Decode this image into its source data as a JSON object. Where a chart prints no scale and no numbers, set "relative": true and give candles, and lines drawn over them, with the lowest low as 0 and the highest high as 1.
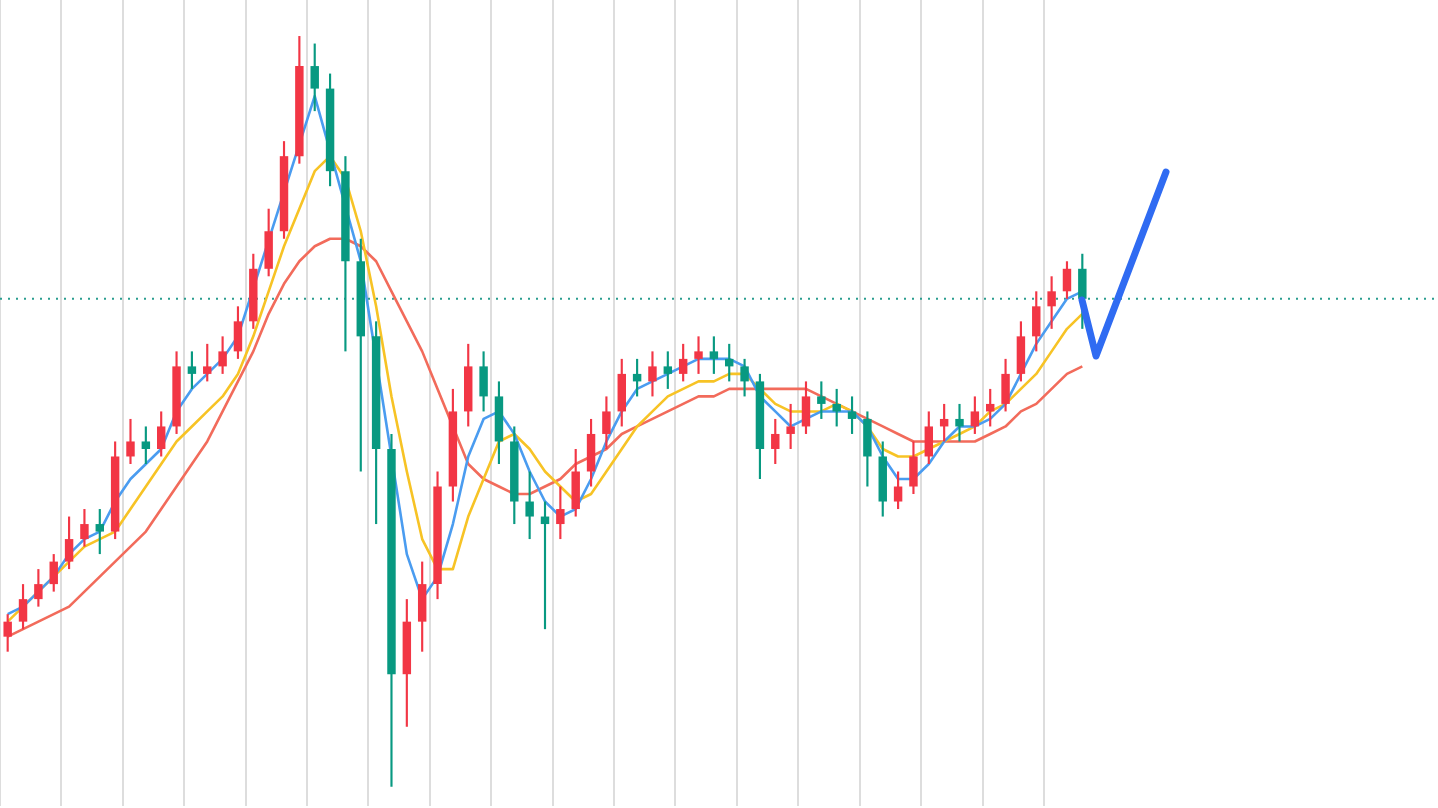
{
  "chart_data": {
    "type": "candlestick",
    "relative": true,
    "grid": "x",
    "categories": [
      null,
      null,
      null,
      null,
      null,
      null,
      null,
      null,
      null,
      null,
      null,
      null,
      null,
      null,
      null,
      null,
      null,
      null,
      null,
      null,
      null,
      null,
      null,
      null,
      null,
      null,
      null,
      null,
      null,
      null,
      null,
      null,
      null,
      null,
      null,
      null,
      null,
      null,
      null,
      null,
      null,
      null,
      null,
      null,
      null,
      null,
      null,
      null,
      null,
      null,
      null,
      null,
      null,
      null,
      null,
      null,
      null,
      null,
      null,
      null,
      null,
      null,
      null,
      null,
      null,
      null,
      null,
      null,
      null,
      null,
      null
    ],
    "ohlc": [
      [
        0.2,
        0.23,
        0.18,
        0.22
      ],
      [
        0.22,
        0.27,
        0.21,
        0.25
      ],
      [
        0.25,
        0.29,
        0.24,
        0.27
      ],
      [
        0.27,
        0.31,
        0.26,
        0.3
      ],
      [
        0.3,
        0.36,
        0.29,
        0.33
      ],
      [
        0.33,
        0.37,
        0.32,
        0.35
      ],
      [
        0.35,
        0.37,
        0.31,
        0.34
      ],
      [
        0.34,
        0.46,
        0.33,
        0.44
      ],
      [
        0.44,
        0.49,
        0.43,
        0.46
      ],
      [
        0.46,
        0.48,
        0.43,
        0.45
      ],
      [
        0.45,
        0.5,
        0.44,
        0.48
      ],
      [
        0.48,
        0.58,
        0.47,
        0.56
      ],
      [
        0.56,
        0.58,
        0.53,
        0.55
      ],
      [
        0.55,
        0.59,
        0.54,
        0.56
      ],
      [
        0.56,
        0.6,
        0.55,
        0.58
      ],
      [
        0.58,
        0.64,
        0.57,
        0.62
      ],
      [
        0.62,
        0.71,
        0.61,
        0.69
      ],
      [
        0.69,
        0.77,
        0.68,
        0.74
      ],
      [
        0.74,
        0.86,
        0.73,
        0.84
      ],
      [
        0.84,
        1.0,
        0.83,
        0.96
      ],
      [
        0.96,
        0.99,
        0.9,
        0.93
      ],
      [
        0.93,
        0.95,
        0.8,
        0.82
      ],
      [
        0.82,
        0.84,
        0.58,
        0.7
      ],
      [
        0.7,
        0.73,
        0.42,
        0.6
      ],
      [
        0.6,
        0.62,
        0.35,
        0.45
      ],
      [
        0.45,
        0.47,
        0.0,
        0.15
      ],
      [
        0.15,
        0.25,
        0.08,
        0.22
      ],
      [
        0.22,
        0.3,
        0.18,
        0.27
      ],
      [
        0.27,
        0.42,
        0.25,
        0.4
      ],
      [
        0.4,
        0.53,
        0.38,
        0.5
      ],
      [
        0.5,
        0.59,
        0.48,
        0.56
      ],
      [
        0.56,
        0.58,
        0.5,
        0.52
      ],
      [
        0.52,
        0.54,
        0.43,
        0.46
      ],
      [
        0.46,
        0.48,
        0.35,
        0.38
      ],
      [
        0.38,
        0.42,
        0.33,
        0.36
      ],
      [
        0.36,
        0.38,
        0.21,
        0.35
      ],
      [
        0.35,
        0.4,
        0.33,
        0.37
      ],
      [
        0.37,
        0.45,
        0.36,
        0.42
      ],
      [
        0.42,
        0.49,
        0.4,
        0.47
      ],
      [
        0.47,
        0.52,
        0.45,
        0.5
      ],
      [
        0.5,
        0.57,
        0.48,
        0.55
      ],
      [
        0.55,
        0.57,
        0.52,
        0.54
      ],
      [
        0.54,
        0.58,
        0.52,
        0.56
      ],
      [
        0.56,
        0.58,
        0.53,
        0.55
      ],
      [
        0.55,
        0.59,
        0.54,
        0.57
      ],
      [
        0.57,
        0.6,
        0.55,
        0.58
      ],
      [
        0.58,
        0.6,
        0.55,
        0.57
      ],
      [
        0.57,
        0.59,
        0.54,
        0.56
      ],
      [
        0.56,
        0.57,
        0.52,
        0.54
      ],
      [
        0.54,
        0.55,
        0.41,
        0.45
      ],
      [
        0.45,
        0.49,
        0.43,
        0.47
      ],
      [
        0.47,
        0.51,
        0.45,
        0.48
      ],
      [
        0.48,
        0.54,
        0.47,
        0.52
      ],
      [
        0.52,
        0.54,
        0.49,
        0.51
      ],
      [
        0.51,
        0.53,
        0.48,
        0.5
      ],
      [
        0.5,
        0.52,
        0.47,
        0.49
      ],
      [
        0.49,
        0.5,
        0.4,
        0.44
      ],
      [
        0.44,
        0.46,
        0.36,
        0.38
      ],
      [
        0.38,
        0.42,
        0.37,
        0.4
      ],
      [
        0.4,
        0.46,
        0.39,
        0.44
      ],
      [
        0.44,
        0.5,
        0.43,
        0.48
      ],
      [
        0.48,
        0.51,
        0.46,
        0.49
      ],
      [
        0.49,
        0.51,
        0.46,
        0.48
      ],
      [
        0.48,
        0.52,
        0.47,
        0.5
      ],
      [
        0.5,
        0.53,
        0.48,
        0.51
      ],
      [
        0.51,
        0.57,
        0.5,
        0.55
      ],
      [
        0.55,
        0.62,
        0.54,
        0.6
      ],
      [
        0.6,
        0.66,
        0.58,
        0.64
      ],
      [
        0.64,
        0.68,
        0.61,
        0.66
      ],
      [
        0.66,
        0.7,
        0.65,
        0.69
      ],
      [
        0.69,
        0.71,
        0.61,
        0.65
      ]
    ],
    "colors": [
      "#f23645",
      "#f23645",
      "#f23645",
      "#f23645",
      "#f23645",
      "#f23645",
      "#089981",
      "#f23645",
      "#f23645",
      "#089981",
      "#f23645",
      "#f23645",
      "#089981",
      "#f23645",
      "#f23645",
      "#f23645",
      "#f23645",
      "#f23645",
      "#f23645",
      "#f23645",
      "#089981",
      "#089981",
      "#089981",
      "#089981",
      "#089981",
      "#089981",
      "#f23645",
      "#f23645",
      "#f23645",
      "#f23645",
      "#f23645",
      "#089981",
      "#089981",
      "#089981",
      "#089981",
      "#089981",
      "#f23645",
      "#f23645",
      "#f23645",
      "#f23645",
      "#f23645",
      "#089981",
      "#f23645",
      "#089981",
      "#f23645",
      "#f23645",
      "#089981",
      "#089981",
      "#089981",
      "#089981",
      "#f23645",
      "#f23645",
      "#f23645",
      "#089981",
      "#089981",
      "#089981",
      "#089981",
      "#089981",
      "#f23645",
      "#f23645",
      "#f23645",
      "#f23645",
      "#089981",
      "#f23645",
      "#f23645",
      "#f23645",
      "#f23645",
      "#f23645",
      "#f23645",
      "#f23645",
      "#089981"
    ],
    "series": [
      {
        "type": "line",
        "color": "#4a9cf0",
        "values": [
          0.23,
          0.24,
          0.26,
          0.28,
          0.31,
          0.33,
          0.34,
          0.38,
          0.41,
          0.43,
          0.45,
          0.5,
          0.53,
          0.55,
          0.57,
          0.6,
          null,
          null,
          null,
          null,
          0.92,
          null,
          null,
          0.7,
          null,
          null,
          0.31,
          0.25,
          0.28,
          0.35,
          0.44,
          0.49,
          0.5,
          0.47,
          0.42,
          0.38,
          0.36,
          0.37,
          0.41,
          0.46,
          0.5,
          0.53,
          0.54,
          0.55,
          0.56,
          0.57,
          0.57,
          0.57,
          0.56,
          0.52,
          0.5,
          0.48,
          0.49,
          0.5,
          0.5,
          0.5,
          0.48,
          0.44,
          0.41,
          0.41,
          0.43,
          0.46,
          0.48,
          0.48,
          0.49,
          0.51,
          0.55,
          0.59,
          0.62,
          0.65,
          0.66
        ]
      },
      {
        "type": "line",
        "color": "#f7c325",
        "values": [
          0.22,
          0.24,
          0.26,
          0.28,
          0.3,
          0.32,
          0.33,
          0.34,
          0.37,
          0.4,
          0.43,
          0.46,
          0.48,
          0.5,
          0.52,
          0.55,
          0.6,
          0.66,
          0.72,
          0.77,
          0.82,
          0.84,
          0.81,
          0.74,
          0.64,
          0.52,
          0.42,
          0.33,
          0.29,
          0.29,
          0.36,
          0.41,
          0.46,
          0.47,
          0.45,
          0.42,
          0.4,
          0.38,
          0.39,
          0.42,
          0.45,
          0.48,
          0.5,
          0.52,
          0.53,
          0.54,
          0.54,
          0.55,
          0.55,
          0.53,
          0.51,
          0.5,
          0.5,
          0.5,
          0.51,
          0.5,
          0.48,
          0.45,
          0.44,
          0.44,
          0.45,
          0.46,
          0.47,
          0.48,
          0.5,
          0.51,
          0.53,
          0.55,
          0.58,
          0.61,
          0.63
        ]
      },
      {
        "type": "line",
        "color": "#f26b5b",
        "values": [
          0.2,
          0.21,
          0.22,
          0.23,
          0.24,
          0.26,
          0.28,
          0.3,
          0.32,
          0.34,
          0.37,
          0.4,
          0.43,
          0.46,
          0.5,
          0.54,
          0.58,
          0.63,
          0.67,
          0.7,
          0.72,
          0.73,
          0.73,
          0.72,
          0.7,
          0.66,
          0.62,
          0.58,
          0.53,
          0.48,
          0.43,
          0.41,
          0.4,
          0.39,
          0.39,
          0.4,
          0.41,
          0.43,
          0.44,
          0.45,
          0.47,
          0.48,
          0.49,
          0.5,
          0.51,
          0.52,
          0.52,
          0.53,
          0.53,
          0.53,
          0.53,
          0.53,
          0.53,
          0.52,
          0.51,
          0.5,
          0.49,
          0.48,
          0.47,
          0.46,
          0.46,
          0.46,
          0.46,
          0.46,
          0.47,
          0.48,
          0.5,
          0.51,
          0.53,
          0.55,
          0.56
        ]
      }
    ],
    "ref_lines": [
      {
        "axis": "y",
        "value": 0.65,
        "color": "#2a9d8f",
        "line_style": "dotted"
      }
    ]
  }
}
